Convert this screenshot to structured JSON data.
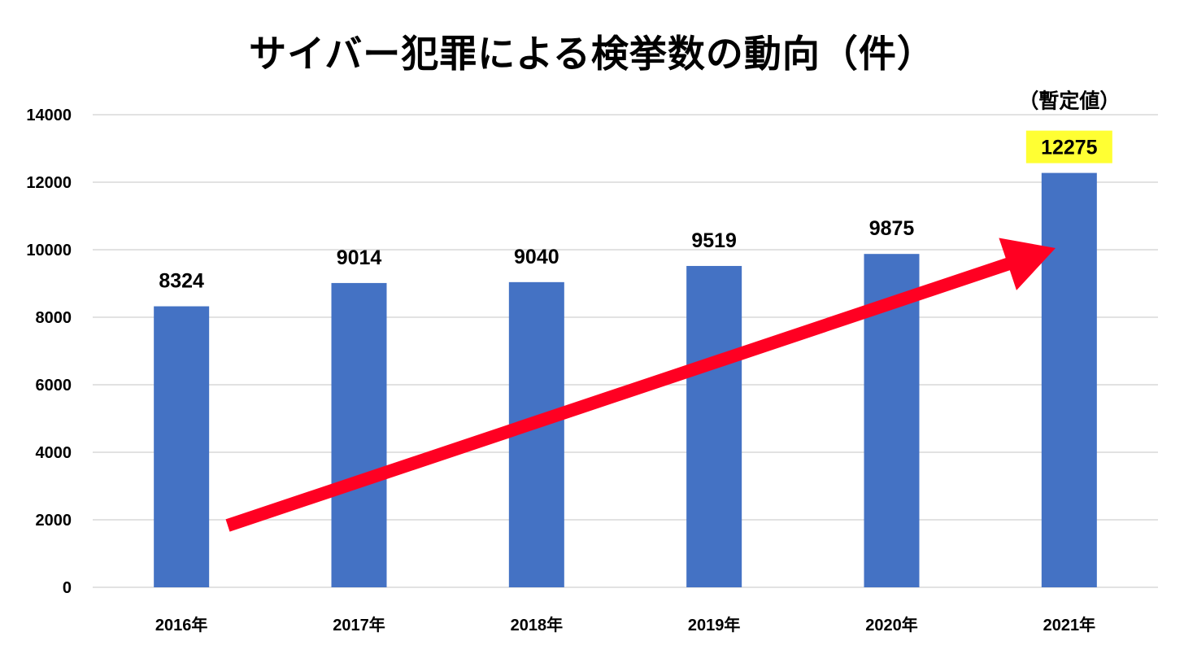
{
  "chart_data": {
    "type": "bar",
    "title": "サイバー犯罪による検挙数の動向（件）",
    "categories": [
      "2016年",
      "2017年",
      "2018年",
      "2019年",
      "2020年",
      "2021年"
    ],
    "values": [
      8324,
      9014,
      9040,
      9519,
      9875,
      12275
    ],
    "ylim": [
      0,
      14000
    ],
    "yticks": [
      0,
      2000,
      4000,
      6000,
      8000,
      10000,
      12000,
      14000
    ],
    "grid": true,
    "bar_color": "#4472C4",
    "data_labels": true,
    "annotation": {
      "text": "（暫定値）",
      "category": "2021年",
      "highlight_color": "#FFFF33"
    },
    "trend_arrow": {
      "color": "#FF0022",
      "direction": "up-right"
    }
  }
}
